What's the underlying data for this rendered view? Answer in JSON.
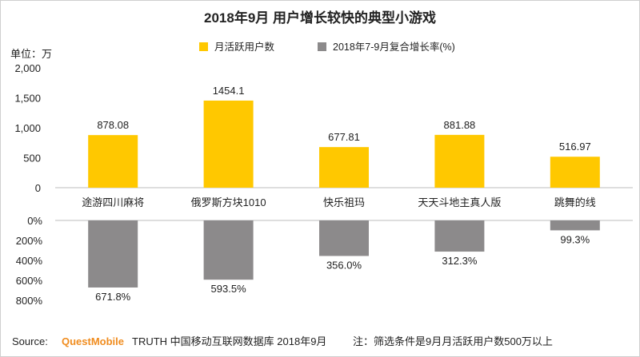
{
  "chart_data": {
    "type": "bar",
    "title": "2018年9月 用户增长较快的典型小游戏",
    "categories": [
      "途游四川麻将",
      "俄罗斯方块1010",
      "快乐祖玛",
      "天天斗地主真人版",
      "跳舞的线"
    ],
    "top_panel": {
      "unit_label": "单位：万",
      "ylim": [
        0,
        2000
      ],
      "yticks": [
        "2,000",
        "1,500",
        "1,000",
        "500",
        "0"
      ],
      "ytick_values": [
        2000,
        1500,
        1000,
        500,
        0
      ],
      "series": [
        {
          "name": "月活跃用户数",
          "values": [
            878.08,
            1454.1,
            677.81,
            881.88,
            516.97
          ],
          "labels": [
            "878.08",
            "1454.1",
            "677.81",
            "881.88",
            "516.97"
          ],
          "color": "#FFC800"
        }
      ]
    },
    "bottom_panel": {
      "ylim": [
        0,
        800
      ],
      "inverted": true,
      "yticks": [
        "0%",
        "200%",
        "400%",
        "600%",
        "800%"
      ],
      "ytick_values": [
        0,
        200,
        400,
        600,
        800
      ],
      "series": [
        {
          "name": "2018年7-9月复合增长率(%)",
          "values": [
            671.8,
            593.5,
            356.0,
            312.3,
            99.3
          ],
          "labels": [
            "671.8%",
            "593.5%",
            "356.0%",
            "312.3%",
            "99.3%"
          ],
          "color": "#8C8A8B"
        }
      ]
    },
    "legend_position": "top-center"
  },
  "footer": {
    "source_label": "Source:",
    "brand": "QuestMobile",
    "source_text": "TRUTH 中国移动互联网数据库 2018年9月",
    "note": "注：筛选条件是9月月活跃用户数500万以上"
  }
}
